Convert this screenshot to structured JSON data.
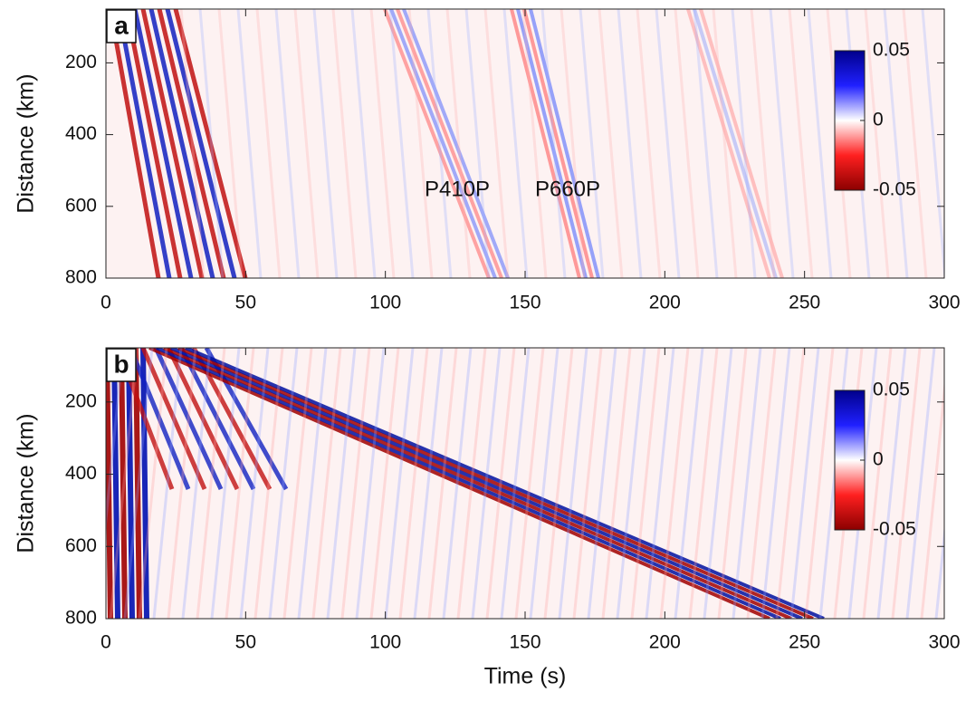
{
  "chart_data": [
    {
      "type": "heatmap",
      "panel_label": "a",
      "ylabel": "Distance (km)",
      "xlim": [
        0,
        300
      ],
      "xticks": [
        0,
        50,
        100,
        150,
        200,
        250,
        300
      ],
      "ylim": [
        50,
        800
      ],
      "yticks": [
        200,
        400,
        600,
        800
      ],
      "y_reversed": true,
      "colorbar": {
        "lim": [
          -0.05,
          0.05
        ],
        "ticks": [
          0.05,
          0,
          -0.05
        ],
        "colors": [
          "#8b0000",
          "#ff2020",
          "#ffffff",
          "#2020ff",
          "#00008b"
        ]
      },
      "annotations": [
        "P410P",
        "P660P"
      ]
    },
    {
      "type": "heatmap",
      "panel_label": "b",
      "ylabel": "Distance (km)",
      "xlabel": "Time (s)",
      "xlim": [
        0,
        300
      ],
      "xticks": [
        0,
        50,
        100,
        150,
        200,
        250,
        300
      ],
      "ylim": [
        50,
        800
      ],
      "yticks": [
        200,
        400,
        600,
        800
      ],
      "y_reversed": true,
      "colorbar": {
        "lim": [
          -0.05,
          0.05
        ],
        "ticks": [
          0.05,
          0,
          -0.05
        ],
        "colors": [
          "#8b0000",
          "#ff2020",
          "#ffffff",
          "#2020ff",
          "#00008b"
        ]
      }
    }
  ]
}
